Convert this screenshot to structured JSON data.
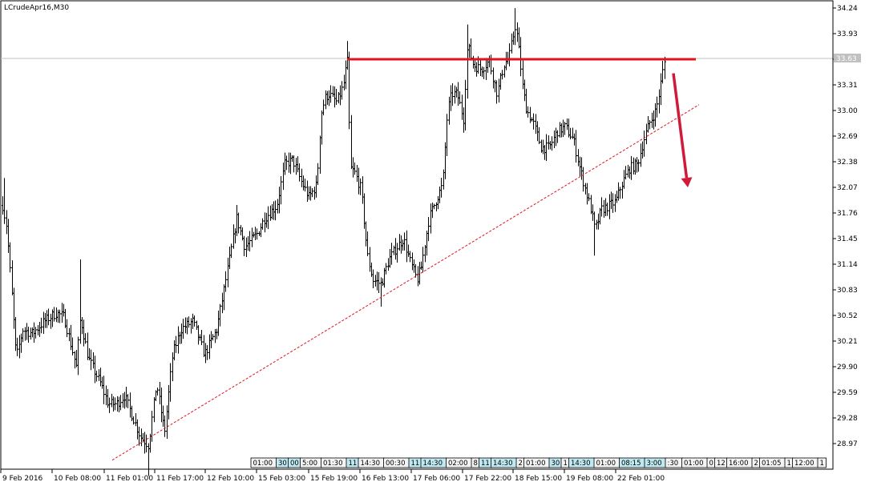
{
  "chart_data": {
    "type": "ohlc",
    "symbol_label": "LCrudeApr16,M30",
    "current_price_label": "33.63",
    "current_price": 33.63,
    "ylim": [
      28.77,
      34.32
    ],
    "y_ticks": [
      "34.24",
      "33.93",
      "33.62",
      "33.31",
      "33.00",
      "32.69",
      "32.38",
      "32.07",
      "31.76",
      "31.45",
      "31.14",
      "30.83",
      "30.52",
      "30.21",
      "29.90",
      "29.59",
      "29.28",
      "28.97"
    ],
    "x_ticks": [
      "9 Feb 2016",
      "10 Feb 08:00",
      "11 Feb 01:00",
      "11 Feb 17:00",
      "12 Feb 10:00",
      "15 Feb 03:00",
      "15 Feb 19:00",
      "16 Feb 13:00",
      "17 Feb 06:00",
      "17 Feb 22:00",
      "18 Feb 15:00",
      "19 Feb 08:00",
      "22 Feb 01:00"
    ],
    "session_tags": [
      {
        "text": "01:00",
        "hl": false
      },
      {
        "text": "30",
        "hl": true
      },
      {
        "text": "00",
        "hl": true
      },
      {
        "text": "5:00",
        "hl": false
      },
      {
        "text": "01:30",
        "hl": false
      },
      {
        "text": "11",
        "hl": true
      },
      {
        "text": "14:30",
        "hl": false
      },
      {
        "text": "00:30",
        "hl": false
      },
      {
        "text": "11",
        "hl": true
      },
      {
        "text": "14:30",
        "hl": true
      },
      {
        "text": "02:00",
        "hl": false
      },
      {
        "text": "8",
        "hl": false
      },
      {
        "text": "11",
        "hl": true
      },
      {
        "text": "14:30",
        "hl": true
      },
      {
        "text": "2",
        "hl": false
      },
      {
        "text": "01:00",
        "hl": false
      },
      {
        "text": "30",
        "hl": true
      },
      {
        "text": "1",
        "hl": false
      },
      {
        "text": "14:30",
        "hl": true
      },
      {
        "text": "01:00",
        "hl": false
      },
      {
        "text": "08:15",
        "hl": true
      },
      {
        "text": "3:00",
        "hl": true
      },
      {
        "text": ":30",
        "hl": false
      },
      {
        "text": "01:00",
        "hl": false
      },
      {
        "text": "0",
        "hl": false
      },
      {
        "text": "12",
        "hl": false
      },
      {
        "text": "16:00",
        "hl": false
      },
      {
        "text": "2",
        "hl": false
      },
      {
        "text": "01:05",
        "hl": false
      },
      {
        "text": "1",
        "hl": false
      },
      {
        "text": "12:00",
        "hl": false
      },
      {
        "text": "1",
        "hl": false
      }
    ],
    "anchors": [
      [
        0,
        32.0
      ],
      [
        8,
        31.6
      ],
      [
        15,
        30.7
      ],
      [
        20,
        30.0
      ],
      [
        28,
        30.35
      ],
      [
        40,
        30.3
      ],
      [
        55,
        30.45
      ],
      [
        70,
        30.55
      ],
      [
        80,
        30.5
      ],
      [
        95,
        29.9
      ],
      [
        100,
        30.5
      ],
      [
        110,
        30.0
      ],
      [
        125,
        29.7
      ],
      [
        135,
        29.45
      ],
      [
        145,
        29.45
      ],
      [
        155,
        29.55
      ],
      [
        165,
        29.3
      ],
      [
        175,
        29.05
      ],
      [
        185,
        28.95
      ],
      [
        195,
        29.7
      ],
      [
        205,
        29.1
      ],
      [
        215,
        30.05
      ],
      [
        225,
        30.35
      ],
      [
        240,
        30.45
      ],
      [
        255,
        30.05
      ],
      [
        270,
        30.35
      ],
      [
        285,
        31.15
      ],
      [
        295,
        31.7
      ],
      [
        305,
        31.35
      ],
      [
        320,
        31.5
      ],
      [
        330,
        31.7
      ],
      [
        345,
        31.85
      ],
      [
        355,
        32.35
      ],
      [
        365,
        32.4
      ],
      [
        375,
        32.15
      ],
      [
        385,
        31.95
      ],
      [
        395,
        32.1
      ],
      [
        400,
        32.95
      ],
      [
        405,
        33.15
      ],
      [
        410,
        33.2
      ],
      [
        420,
        33.1
      ],
      [
        428,
        33.3
      ],
      [
        433,
        33.62
      ],
      [
        437,
        32.3
      ],
      [
        442,
        32.25
      ],
      [
        450,
        32.05
      ],
      [
        458,
        31.25
      ],
      [
        465,
        30.95
      ],
      [
        475,
        30.9
      ],
      [
        485,
        31.2
      ],
      [
        495,
        31.35
      ],
      [
        503,
        31.45
      ],
      [
        512,
        31.15
      ],
      [
        520,
        30.95
      ],
      [
        525,
        31.1
      ],
      [
        535,
        31.7
      ],
      [
        545,
        31.95
      ],
      [
        552,
        32.1
      ],
      [
        558,
        33.0
      ],
      [
        563,
        33.2
      ],
      [
        570,
        33.2
      ],
      [
        578,
        32.9
      ],
      [
        583,
        33.8
      ],
      [
        590,
        33.55
      ],
      [
        600,
        33.5
      ],
      [
        610,
        33.6
      ],
      [
        620,
        33.2
      ],
      [
        628,
        33.55
      ],
      [
        635,
        33.65
      ],
      [
        643,
        34.05
      ],
      [
        648,
        33.65
      ],
      [
        652,
        33.25
      ],
      [
        657,
        33.0
      ],
      [
        665,
        32.85
      ],
      [
        675,
        32.55
      ],
      [
        685,
        32.55
      ],
      [
        695,
        32.75
      ],
      [
        705,
        32.8
      ],
      [
        715,
        32.65
      ],
      [
        722,
        32.35
      ],
      [
        730,
        32.05
      ],
      [
        737,
        31.8
      ],
      [
        742,
        31.55
      ],
      [
        750,
        31.8
      ],
      [
        760,
        31.85
      ],
      [
        768,
        31.9
      ],
      [
        775,
        32.1
      ],
      [
        785,
        32.3
      ],
      [
        795,
        32.35
      ],
      [
        803,
        32.65
      ],
      [
        810,
        32.85
      ],
      [
        818,
        33.0
      ],
      [
        822,
        33.2
      ],
      [
        826,
        33.45
      ],
      [
        829,
        33.6
      ]
    ],
    "horizontal_line": {
      "value": 33.62,
      "from_x": 433,
      "to_x": 868,
      "color": "#e0131f"
    },
    "trendline": {
      "start": [
        140,
        28.77
      ],
      "end": [
        872,
        33.07
      ],
      "color": "#e0131f",
      "style": "dashed"
    },
    "arrow": {
      "from": [
        840,
        33.45
      ],
      "to": [
        858,
        32.07
      ],
      "color": "#d01a3a"
    },
    "colors": {
      "bars": "#000000",
      "grid_line": "#c0c0c0",
      "price_tag_bg": "#c0c0c0",
      "tag_hl": "#bfe8f0"
    }
  }
}
